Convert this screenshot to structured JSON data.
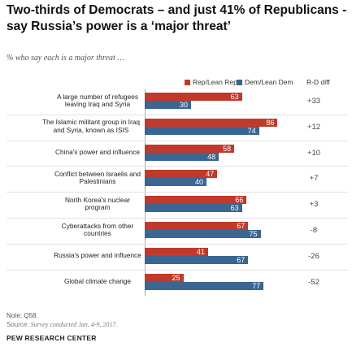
{
  "title": "Two-thirds of Democrats – and just 41% of Republicans - say Russia’s power is a ‘major threat’",
  "subtitle": "% who say each is a major threat …",
  "legend": {
    "rep_label": "Rep/Lean Rep",
    "dem_label": "Dem/Lean Dem",
    "diff_label": "R-D diff"
  },
  "colors": {
    "rep": "#c0392b",
    "dem": "#3a6691",
    "rep_text": "#ffffff",
    "dem_text": "#ffffff"
  },
  "chart_data": {
    "type": "bar",
    "orientation": "horizontal",
    "categories": [
      "A large number of refugees leaving Iraq and Syria",
      "The Islamic militant group in Iraq and Syria, known as ISIS",
      "China's power and influence",
      "Conflict between Israelis and Palestinians",
      "North Korea's nuclear program",
      "Cyberattacks from other countries",
      "Russia's power and influence",
      "Global climate change"
    ],
    "series": [
      {
        "name": "Rep/Lean Rep",
        "values": [
          63,
          86,
          58,
          47,
          66,
          67,
          41,
          25
        ]
      },
      {
        "name": "Dem/Lean Dem",
        "values": [
          30,
          74,
          48,
          40,
          63,
          75,
          67,
          77
        ]
      }
    ],
    "diffs": [
      "+33",
      "+12",
      "+10",
      "+7",
      "+3",
      "-8",
      "-26",
      "-52"
    ],
    "xlim": [
      0,
      100
    ],
    "grid": false,
    "legend_position": "top"
  },
  "footer": {
    "note": "Note: Q58.",
    "source_label": "Source:",
    "source_text": "Survey conducted Jan. 4-9, 2017.",
    "org": "PEW RESEARCH CENTER"
  }
}
